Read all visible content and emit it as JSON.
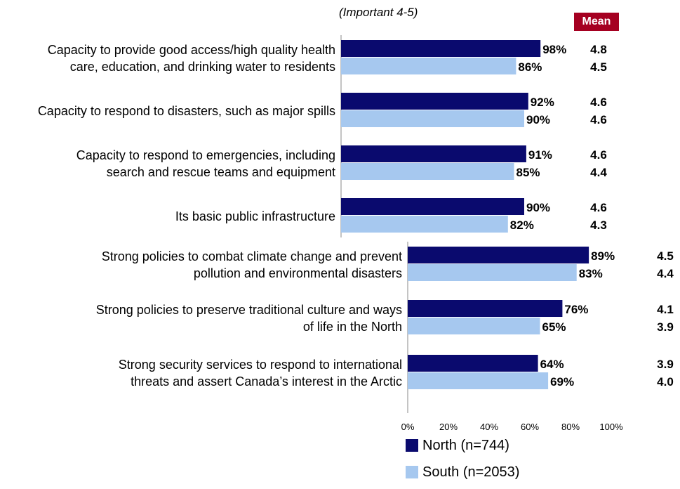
{
  "chart_data": {
    "type": "bar",
    "orientation": "horizontal",
    "subtitle": "(Important 4-5)",
    "mean_label": "Mean",
    "colors": {
      "north": "#0a0a6e",
      "south": "#a6c8ef",
      "mean_badge": "#a50021"
    },
    "categories": [
      [
        "Capacity to provide good access/high quality health",
        "care, education, and drinking water to residents"
      ],
      [
        "Capacity to respond to disasters, such as major spills"
      ],
      [
        "Capacity to respond to emergencies, including",
        "search and rescue teams and equipment"
      ],
      [
        "Its basic public infrastructure"
      ],
      [
        "Strong policies to combat climate change and prevent",
        "pollution and environmental disasters"
      ],
      [
        "Strong policies to preserve traditional culture and ways",
        "of life in the North"
      ],
      [
        "Strong security services to respond to international",
        "threats and assert Canada’s interest in the Arctic"
      ]
    ],
    "series": [
      {
        "name": "North (n=744)",
        "values": [
          98,
          92,
          91,
          90,
          89,
          76,
          64
        ],
        "value_labels": [
          "98%",
          "92%",
          "91%",
          "90%",
          "89%",
          "76%",
          "64%"
        ],
        "means": [
          "4.8",
          "4.6",
          "4.6",
          "4.6",
          "4.5",
          "4.1",
          "3.9"
        ]
      },
      {
        "name": "South (n=2053)",
        "values": [
          86,
          90,
          85,
          82,
          83,
          65,
          69
        ],
        "value_labels": [
          "86%",
          "90%",
          "85%",
          "82%",
          "83%",
          "65%",
          "69%"
        ],
        "means": [
          "4.5",
          "4.6",
          "4.4",
          "4.3",
          "4.4",
          "3.9",
          "4.0"
        ]
      }
    ],
    "xlim": [
      0,
      100
    ],
    "x_ticks": [
      "0%",
      "20%",
      "40%",
      "60%",
      "80%",
      "100%"
    ],
    "legend_position": "bottom"
  }
}
